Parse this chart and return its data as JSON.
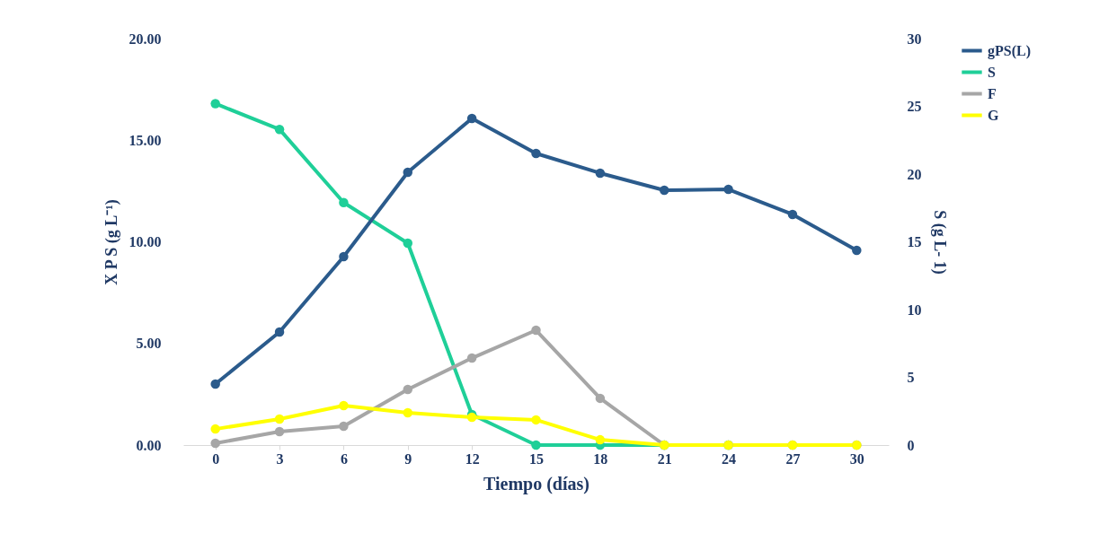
{
  "chart_data": {
    "type": "line",
    "xlabel": "Tiempo (días)",
    "ylabel": "X P S (g L⁻¹)",
    "y2label": "S (g L- 1)",
    "categories": [
      "0",
      "3",
      "6",
      "9",
      "12",
      "15",
      "18",
      "21",
      "24",
      "27",
      "30"
    ],
    "series": [
      {
        "name": "gPS(L)",
        "color": "#2b5b8c",
        "values": [
          3.0,
          5.56,
          9.27,
          13.42,
          16.07,
          14.35,
          13.38,
          12.54,
          12.58,
          11.35,
          9.58
        ]
      },
      {
        "name": "S",
        "color": "#1fcf98",
        "axis": "y2",
        "values": [
          25.2,
          23.3,
          17.9,
          14.9,
          2.25,
          0,
          0,
          0,
          0,
          null,
          null
        ]
      },
      {
        "name": "F",
        "color": "#a6a6a6",
        "values": [
          0.09,
          0.66,
          0.93,
          2.74,
          4.28,
          5.65,
          2.3,
          0,
          0,
          0,
          0
        ]
      },
      {
        "name": "G",
        "color": "#ffff00",
        "values": [
          0.79,
          1.28,
          1.94,
          1.59,
          1.37,
          1.24,
          0.26,
          0,
          0,
          0,
          0
        ]
      }
    ],
    "ylim": [
      0,
      20
    ],
    "yticks": [
      {
        "value": 0,
        "label": "0.00"
      },
      {
        "value": 5,
        "label": "5.00"
      },
      {
        "value": 10,
        "label": "10.00"
      },
      {
        "value": 15,
        "label": "15.00"
      },
      {
        "value": 20,
        "label": "20.00"
      }
    ],
    "y2lim": [
      0,
      30
    ],
    "y2ticks": [
      0,
      5,
      10,
      15,
      20,
      25,
      30
    ],
    "legend": "right",
    "marker": "circle",
    "line_style": "solid",
    "grid": false
  }
}
